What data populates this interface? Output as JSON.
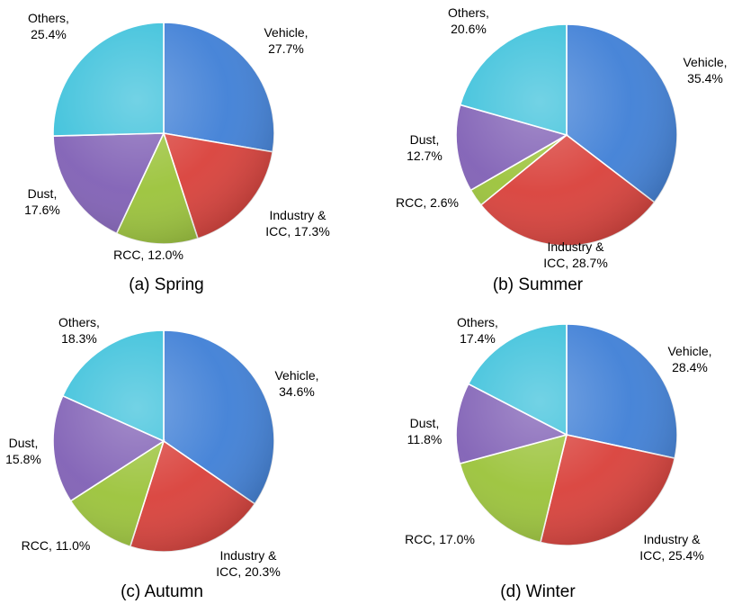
{
  "chart_data": [
    {
      "type": "pie",
      "title": "(a) Spring",
      "colors": [
        "#3f7fd6",
        "#d9403a",
        "#9bc33a",
        "#8060b5",
        "#3cc1db"
      ],
      "categories": [
        "Vehicle",
        "Industry & ICC",
        "RCC",
        "Dust",
        "Others"
      ],
      "values": [
        27.7,
        17.3,
        12.0,
        17.6,
        25.4
      ],
      "labels": [
        [
          "Vehicle,",
          "27.7%"
        ],
        [
          "Industry &",
          "ICC, 17.3%"
        ],
        [
          "RCC, 12.0%"
        ],
        [
          "Dust,",
          "17.6%"
        ],
        [
          "Others,",
          "25.4%"
        ]
      ]
    },
    {
      "type": "pie",
      "title": "(b) Summer",
      "colors": [
        "#3f7fd6",
        "#d9403a",
        "#9bc33a",
        "#8060b5",
        "#3cc1db"
      ],
      "categories": [
        "Vehicle",
        "Industry & ICC",
        "RCC",
        "Dust",
        "Others"
      ],
      "values": [
        35.4,
        28.7,
        2.6,
        12.7,
        20.6
      ],
      "labels": [
        [
          "Vehicle,",
          "35.4%"
        ],
        [
          "Industry &",
          "ICC, 28.7%"
        ],
        [
          "RCC, 2.6%"
        ],
        [
          "Dust,",
          "12.7%"
        ],
        [
          "Others,",
          "20.6%"
        ]
      ]
    },
    {
      "type": "pie",
      "title": "(c) Autumn",
      "colors": [
        "#3f7fd6",
        "#d9403a",
        "#9bc33a",
        "#8060b5",
        "#3cc1db"
      ],
      "categories": [
        "Vehicle",
        "Industry & ICC",
        "RCC",
        "Dust",
        "Others"
      ],
      "values": [
        34.6,
        20.3,
        11.0,
        15.8,
        18.3
      ],
      "labels": [
        [
          "Vehicle,",
          "34.6%"
        ],
        [
          "Industry &",
          "ICC, 20.3%"
        ],
        [
          "RCC, 11.0%"
        ],
        [
          "Dust,",
          "15.8%"
        ],
        [
          "Others,",
          "18.3%"
        ]
      ]
    },
    {
      "type": "pie",
      "title": "(d) Winter",
      "colors": [
        "#3f7fd6",
        "#d9403a",
        "#9bc33a",
        "#8060b5",
        "#3cc1db"
      ],
      "categories": [
        "Vehicle",
        "Industry & ICC",
        "RCC",
        "Dust",
        "Others"
      ],
      "values": [
        28.4,
        25.4,
        17.0,
        11.8,
        17.4
      ],
      "labels": [
        [
          "Vehicle,",
          "28.4%"
        ],
        [
          "Industry &",
          "ICC, 25.4%"
        ],
        [
          "RCC, 17.0%"
        ],
        [
          "Dust,",
          "11.8%"
        ],
        [
          "Others,",
          "17.4%"
        ]
      ]
    }
  ]
}
